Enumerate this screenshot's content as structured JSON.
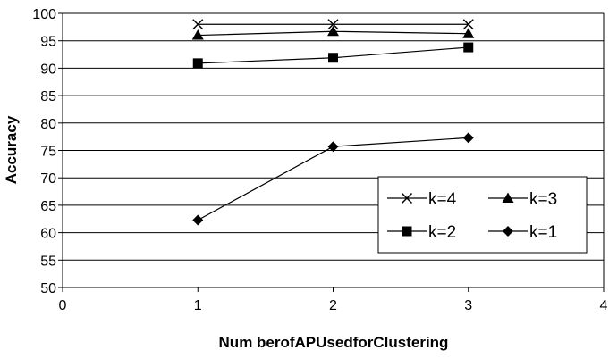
{
  "chart_data": {
    "type": "line",
    "xlabel": "Num berofAPUsedforClustering",
    "ylabel": "Accuracy",
    "xlim": [
      0,
      4
    ],
    "ylim": [
      50,
      100
    ],
    "x_ticks": [
      0,
      1,
      2,
      3,
      4
    ],
    "y_ticks": [
      50,
      55,
      60,
      65,
      70,
      75,
      80,
      85,
      90,
      95,
      100
    ],
    "grid": "horizontal",
    "legend_position": "bottom-right",
    "series": [
      {
        "name": "k=4",
        "marker": "x",
        "x": [
          1,
          2,
          3
        ],
        "values": [
          98,
          98,
          98
        ]
      },
      {
        "name": "k=3",
        "marker": "triangle",
        "x": [
          1,
          2,
          3
        ],
        "values": [
          96,
          96.7,
          96.3
        ]
      },
      {
        "name": "k=2",
        "marker": "square",
        "x": [
          1,
          2,
          3
        ],
        "values": [
          90.9,
          91.9,
          93.8
        ]
      },
      {
        "name": "k=1",
        "marker": "diamond",
        "x": [
          1,
          2,
          3
        ],
        "values": [
          62.3,
          75.7,
          77.3
        ]
      }
    ],
    "colors": {
      "line": "#000000",
      "grid": "#000000",
      "background": "#ffffff"
    }
  }
}
